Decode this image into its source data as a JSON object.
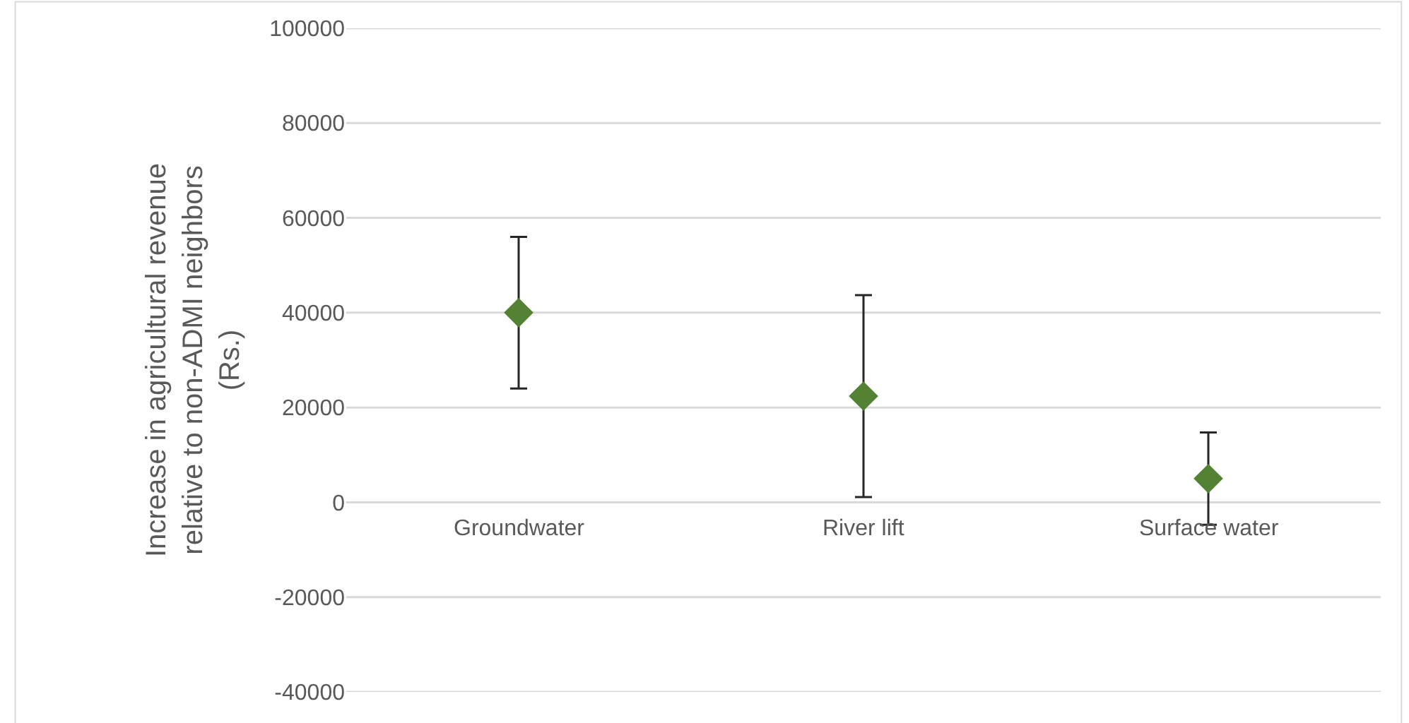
{
  "chart_data": {
    "type": "scatter",
    "ylabel": "Increase in agricultural revenue relative to non-ADMI neighbors (Rs.)",
    "categories": [
      "Groundwater",
      "River lift",
      "Surface water"
    ],
    "series": [
      {
        "color": "#548235",
        "values": [
          40000,
          22400,
          5000
        ],
        "errors": [
          16000,
          21300,
          9750
        ]
      }
    ],
    "marker": "diamond",
    "ylim": [
      -40000,
      100000
    ],
    "yticks": [
      -40000,
      -20000,
      0,
      20000,
      40000,
      60000,
      80000,
      100000
    ],
    "grid": "y"
  }
}
